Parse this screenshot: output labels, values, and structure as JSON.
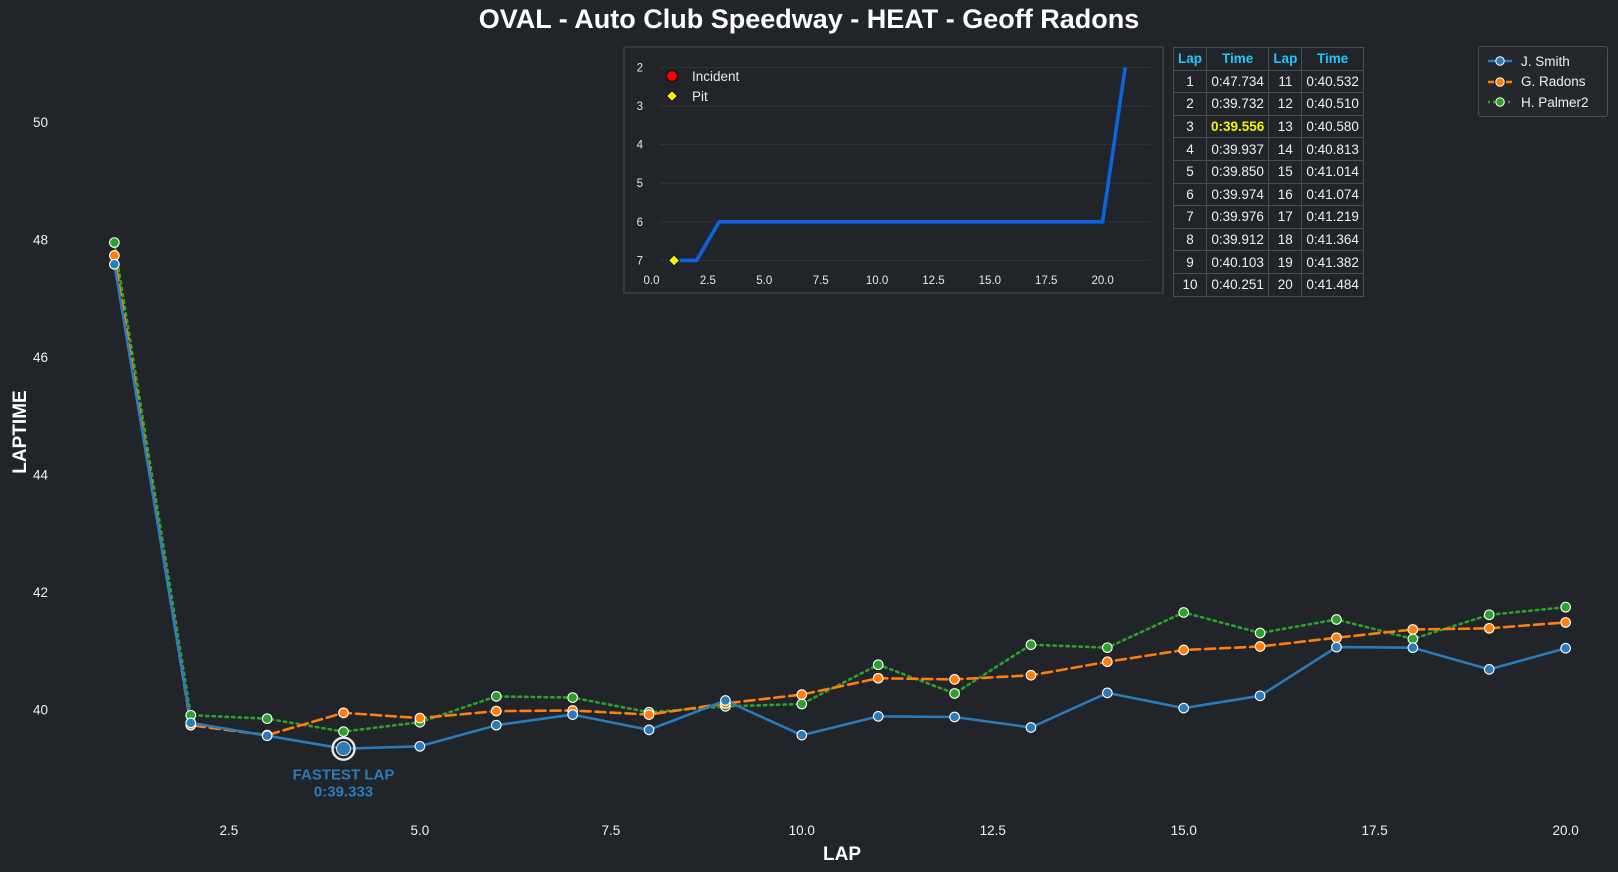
{
  "title": "OVAL - Auto Club Speedway - HEAT - Geoff Radons",
  "colors": {
    "background": "#212428",
    "j_smith": "#2b7bba",
    "g_radons": "#ff7f0e",
    "h_palmer2": "#2ca02c",
    "position_line": "#0a64dc",
    "table_header": "#1ec8ff",
    "fastest_highlight": "#f5f500",
    "annotation": "#2b7bba"
  },
  "chart_data": [
    {
      "type": "line",
      "title": "",
      "xlabel": "LAP",
      "ylabel": "LAPTIME",
      "xlim": [
        0.55,
        20.45
      ],
      "ylim": [
        38.2,
        51.4
      ],
      "xticks": [
        "2.5",
        "5.0",
        "7.5",
        "10.0",
        "12.5",
        "15.0",
        "17.5",
        "20.0"
      ],
      "yticks": [
        "40",
        "42",
        "44",
        "46",
        "48",
        "50"
      ],
      "grid": false,
      "legend_position": "top-right",
      "x": [
        1,
        2,
        3,
        4,
        5,
        6,
        7,
        8,
        9,
        10,
        11,
        12,
        13,
        14,
        15,
        16,
        17,
        18,
        19,
        20
      ],
      "series": [
        {
          "name": "J. Smith",
          "style": "solid",
          "values": [
            47.58,
            39.77,
            39.55,
            39.33,
            39.37,
            39.73,
            39.91,
            39.65,
            40.15,
            39.56,
            39.88,
            39.87,
            39.69,
            40.28,
            40.02,
            40.23,
            41.06,
            41.05,
            40.68,
            41.04
          ]
        },
        {
          "name": "G. Radons",
          "style": "dashed",
          "values": [
            47.73,
            39.73,
            39.56,
            39.94,
            39.85,
            39.97,
            39.98,
            39.91,
            40.1,
            40.25,
            40.53,
            40.51,
            40.58,
            40.81,
            41.01,
            41.07,
            41.22,
            41.36,
            41.38,
            41.48
          ]
        },
        {
          "name": "H. Palmer2",
          "style": "dotted",
          "values": [
            47.95,
            39.9,
            39.84,
            39.62,
            39.78,
            40.22,
            40.2,
            39.95,
            40.05,
            40.09,
            40.76,
            40.27,
            41.1,
            41.05,
            41.65,
            41.3,
            41.53,
            41.2,
            41.61,
            41.74
          ]
        }
      ],
      "annotations": [
        {
          "label": "FASTEST LAP",
          "value": "0:39.333",
          "x": 4,
          "y": 39.33
        }
      ]
    },
    {
      "type": "line",
      "title": "",
      "xlim": [
        -0.6,
        22.1
      ],
      "ylim": [
        7.3,
        1.6
      ],
      "y_inverted": true,
      "xticks": [
        "0.0",
        "2.5",
        "5.0",
        "7.5",
        "10.0",
        "12.5",
        "15.0",
        "17.5",
        "20.0"
      ],
      "yticks": [
        "2",
        "3",
        "4",
        "5",
        "6",
        "7"
      ],
      "legend_position": "top-left",
      "legend": [
        "Incident",
        "Pit"
      ],
      "position_line": {
        "x": [
          1,
          2,
          3,
          4,
          5,
          6,
          7,
          8,
          9,
          10,
          11,
          12,
          13,
          14,
          15,
          16,
          17,
          18,
          19,
          20,
          21
        ],
        "y": [
          7,
          7,
          6,
          6,
          6,
          6,
          6,
          6,
          6,
          6,
          6,
          6,
          6,
          6,
          6,
          6,
          6,
          6,
          6,
          6,
          2
        ]
      },
      "pit": [
        {
          "x": 1,
          "y": 7
        }
      ],
      "incidents": []
    }
  ],
  "lap_table": {
    "headers": [
      "Lap",
      "Time",
      "Lap",
      "Time"
    ],
    "best_lap": 3,
    "rows": [
      {
        "lap1": "1",
        "time1": "0:47.734",
        "lap2": "11",
        "time2": "0:40.532"
      },
      {
        "lap1": "2",
        "time1": "0:39.732",
        "lap2": "12",
        "time2": "0:40.510"
      },
      {
        "lap1": "3",
        "time1": "0:39.556",
        "lap2": "13",
        "time2": "0:40.580"
      },
      {
        "lap1": "4",
        "time1": "0:39.937",
        "lap2": "14",
        "time2": "0:40.813"
      },
      {
        "lap1": "5",
        "time1": "0:39.850",
        "lap2": "15",
        "time2": "0:41.014"
      },
      {
        "lap1": "6",
        "time1": "0:39.974",
        "lap2": "16",
        "time2": "0:41.074"
      },
      {
        "lap1": "7",
        "time1": "0:39.976",
        "lap2": "17",
        "time2": "0:41.219"
      },
      {
        "lap1": "8",
        "time1": "0:39.912",
        "lap2": "18",
        "time2": "0:41.364"
      },
      {
        "lap1": "9",
        "time1": "0:40.103",
        "lap2": "19",
        "time2": "0:41.382"
      },
      {
        "lap1": "10",
        "time1": "0:40.251",
        "lap2": "20",
        "time2": "0:41.484"
      }
    ]
  }
}
